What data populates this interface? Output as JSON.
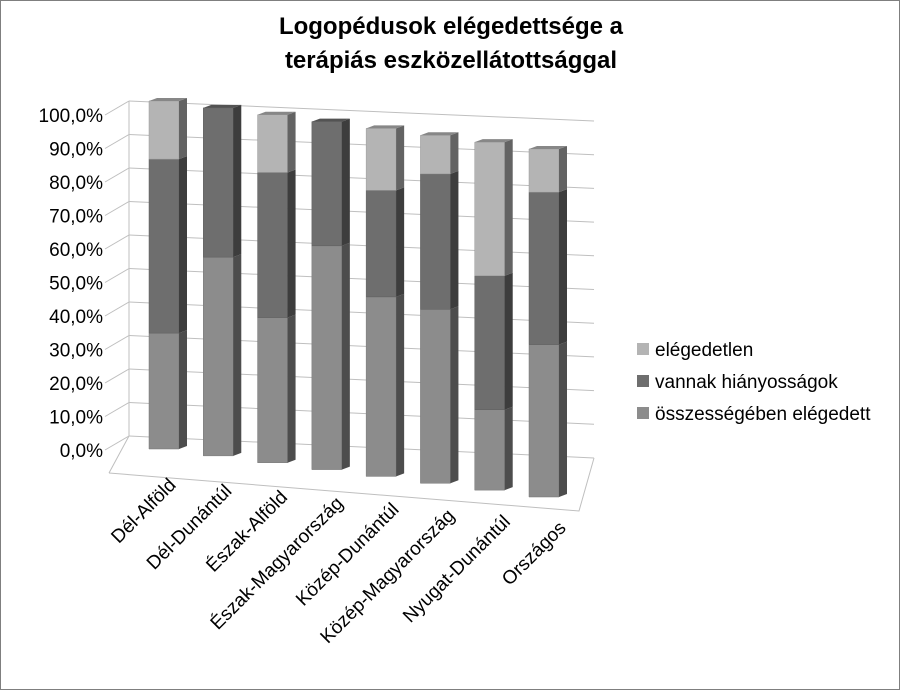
{
  "chart_data": {
    "type": "bar",
    "stacked": true,
    "three_d": true,
    "title_lines": [
      "Logopédusok elégedettsége a",
      "terápiás eszközellátottsággal"
    ],
    "ylim": [
      0,
      100
    ],
    "y_ticks": [
      "0,0%",
      "10,0%",
      "20,0%",
      "30,0%",
      "40,0%",
      "50,0%",
      "60,0%",
      "70,0%",
      "80,0%",
      "90,0%",
      "100,0%"
    ],
    "categories": [
      "Dél-Alföld",
      "Dél-Dunántúl",
      "Észak-Alföld",
      "Észak-Magyarország",
      "Közép-Dunántúl",
      "Közép-Magyarország",
      "Nyugat-Dunántúl",
      "Országos"
    ],
    "series": [
      {
        "name": "összességében elégedett",
        "values": [
          33.3,
          57.1,
          41.7,
          64.3,
          51.6,
          50.0,
          23.1,
          43.8
        ],
        "color": "#8c8c8c"
      },
      {
        "name": "vannak hiányosságok",
        "values": [
          50.0,
          42.9,
          41.7,
          35.7,
          30.6,
          38.9,
          38.5,
          43.8
        ],
        "color": "#6e6e6e"
      },
      {
        "name": "elégedetlen",
        "values": [
          16.7,
          0.0,
          16.6,
          0.0,
          17.8,
          11.1,
          38.4,
          12.4
        ],
        "color": "#b4b4b4"
      }
    ],
    "legend_position": "right",
    "grid": true
  }
}
